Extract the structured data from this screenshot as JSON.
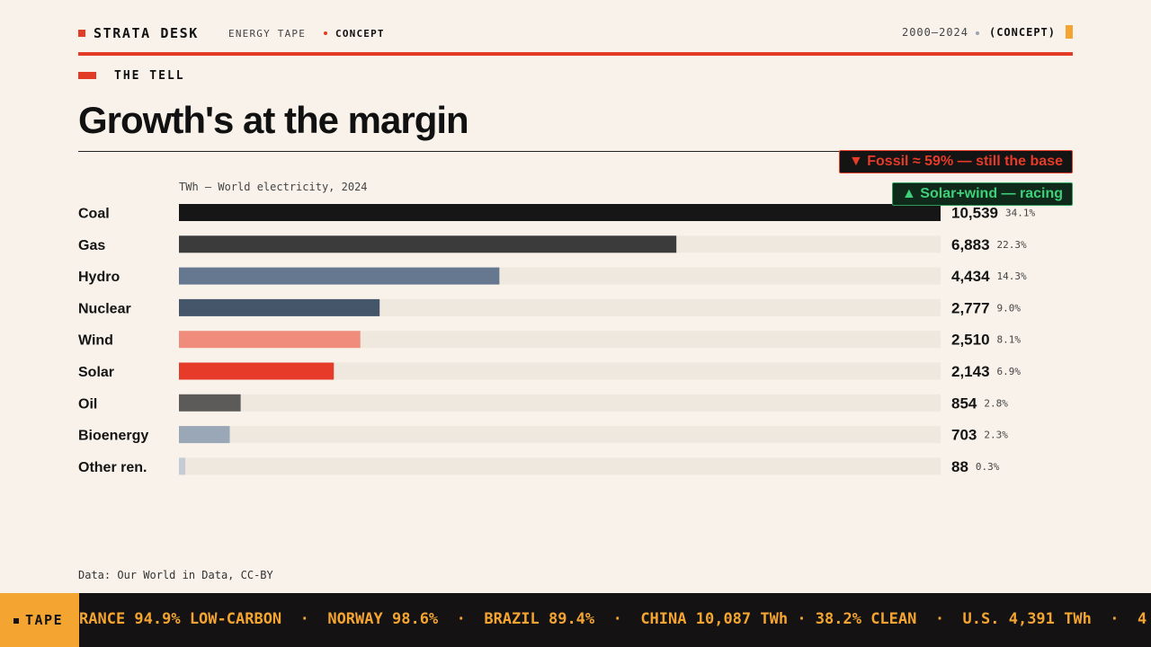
{
  "header": {
    "brand": "STRATA DESK",
    "section": "ENERGY TAPE",
    "tag": "CONCEPT",
    "range": "2000–2024",
    "range_tag": "(CONCEPT)",
    "accent": "#e23b26",
    "amber": "#f4a531"
  },
  "kicker": "THE TELL",
  "headline": "Growth's at the margin",
  "callouts": {
    "fossil": "▼ Fossil ≈ 59% — still the base",
    "renewables": "▲ Solar+wind — racing"
  },
  "source": "Data: Our World in Data, CC-BY",
  "ticker": {
    "label": "TAPE",
    "text": "RANCE 94.9% LOW-CARBON  ·  NORWAY 98.6%  ·  BRAZIL 89.4%  ·  CHINA 10,087 TWh · 38.2% CLEAN  ·  U.S. 4,391 TWh  ·  4"
  },
  "chart_data": {
    "type": "bar",
    "orientation": "horizontal",
    "subtitle": "TWh — World electricity, 2024",
    "xlim": [
      0,
      10539
    ],
    "categories": [
      "Coal",
      "Gas",
      "Hydro",
      "Nuclear",
      "Wind",
      "Solar",
      "Oil",
      "Bioenergy",
      "Other ren."
    ],
    "values": [
      10539,
      6883,
      4434,
      2777,
      2510,
      2143,
      854,
      703,
      88
    ],
    "value_labels": [
      "10,539",
      "6,883",
      "4,434",
      "2,777",
      "2,510",
      "2,143",
      "854",
      "703",
      "88"
    ],
    "shares": [
      "34.1%",
      "22.3%",
      "14.3%",
      "9.0%",
      "8.1%",
      "6.9%",
      "2.8%",
      "2.3%",
      "0.3%"
    ],
    "colors": [
      "#161616",
      "#3b3b3b",
      "#66788f",
      "#45556a",
      "#ef8c7b",
      "#e53b28",
      "#5d5b59",
      "#9aa7b6",
      "#c5cbd4"
    ],
    "track_color": "#efe8de"
  }
}
